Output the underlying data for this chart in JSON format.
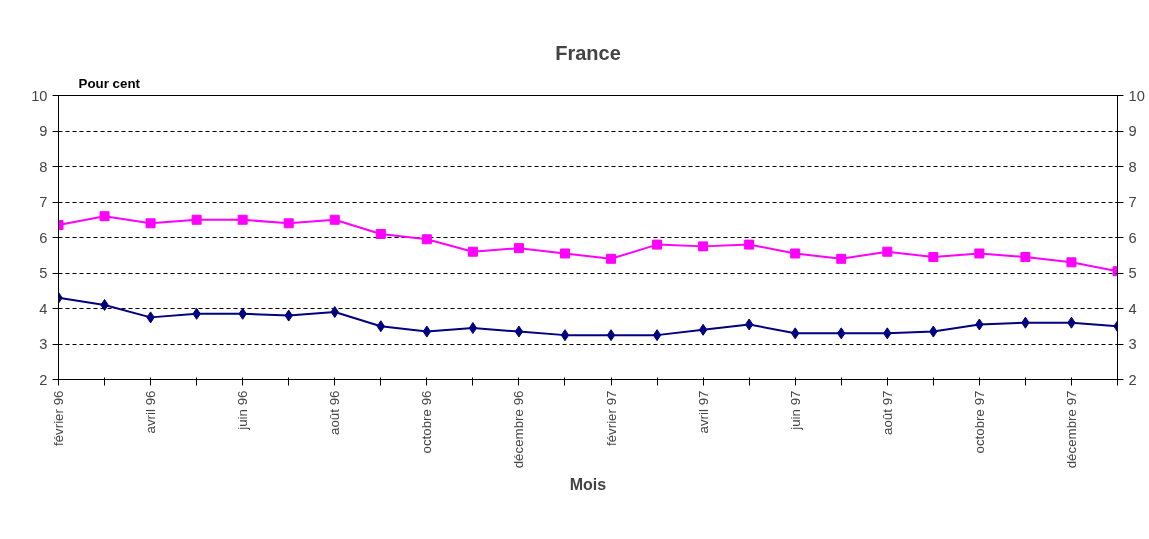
{
  "chart_data": {
    "type": "line",
    "title": "France",
    "xlabel": "Mois",
    "ylabel": "Pour cent",
    "categories": [
      "février 96",
      null,
      "avril 96",
      null,
      "juin 96",
      null,
      "août 96",
      null,
      "octobre 96",
      null,
      "décembre 96",
      null,
      "février 97",
      null,
      "avril 97",
      null,
      "juin 97",
      null,
      "août 97",
      null,
      "octobre 97",
      null,
      "décembre 97",
      null
    ],
    "series": [
      {
        "color": "#ff00ff",
        "marker": "square",
        "values": [
          6.35,
          6.6,
          6.4,
          6.5,
          6.5,
          6.4,
          6.5,
          6.1,
          5.95,
          5.6,
          5.7,
          5.55,
          5.4,
          5.8,
          5.75,
          5.8,
          5.55,
          5.4,
          5.6,
          5.45,
          5.55,
          5.45,
          5.3,
          5.05
        ]
      },
      {
        "color": "#000080",
        "marker": "diamond",
        "values": [
          4.3,
          4.1,
          3.75,
          3.85,
          3.85,
          3.8,
          3.9,
          3.5,
          3.35,
          3.45,
          3.35,
          3.25,
          3.25,
          3.25,
          3.4,
          3.55,
          3.3,
          3.3,
          3.3,
          3.35,
          3.55,
          3.6,
          3.6,
          3.5
        ]
      }
    ],
    "ylim": [
      2,
      10
    ],
    "yticks": [
      2,
      3,
      4,
      5,
      6,
      7,
      8,
      9,
      10
    ],
    "y2lim": [
      2,
      10
    ],
    "y2ticks": [
      2,
      3,
      4,
      5,
      6,
      7,
      8,
      9,
      10
    ],
    "grid": "y",
    "legend": false
  }
}
